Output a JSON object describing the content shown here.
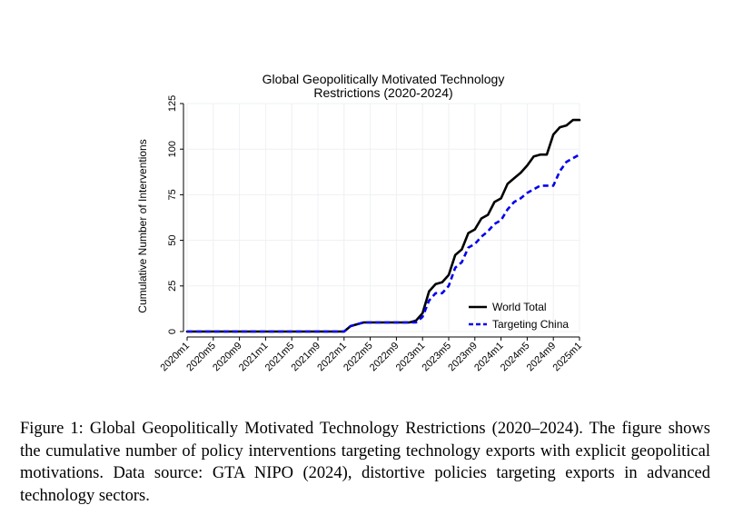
{
  "chart_data": {
    "type": "line",
    "title_lines": [
      "Global Geopolitically Motivated Technology",
      "Restrictions (2020-2024)"
    ],
    "xlabel": "",
    "ylabel": "Cumulative Number of Interventions",
    "ylim": [
      0,
      125
    ],
    "yticks": [
      0,
      25,
      50,
      75,
      100,
      125
    ],
    "xlim": [
      0,
      60
    ],
    "xticks": [
      0,
      4,
      8,
      12,
      16,
      20,
      24,
      28,
      32,
      36,
      40,
      44,
      48,
      52,
      56,
      60
    ],
    "xtick_labels": [
      "2020m1",
      "2020m5",
      "2020m9",
      "2021m1",
      "2021m5",
      "2021m9",
      "2022m1",
      "2022m5",
      "2022m9",
      "2023m1",
      "2023m5",
      "2023m9",
      "2024m1",
      "2024m5",
      "2024m9",
      "2025m1"
    ],
    "grid": true,
    "legend_position": "bottom-right",
    "series": [
      {
        "name": "World Total",
        "color": "#000000",
        "style": "solid",
        "x": [
          0,
          1,
          2,
          3,
          4,
          5,
          6,
          7,
          8,
          9,
          10,
          11,
          12,
          13,
          14,
          15,
          16,
          17,
          18,
          19,
          20,
          21,
          22,
          23,
          24,
          25,
          26,
          27,
          28,
          29,
          30,
          31,
          32,
          33,
          34,
          35,
          36,
          37,
          38,
          39,
          40,
          41,
          42,
          43,
          44,
          45,
          46,
          47,
          48,
          49,
          50,
          51,
          52,
          53,
          54,
          55,
          56,
          57,
          58,
          59,
          60
        ],
        "values": [
          0,
          0,
          0,
          0,
          0,
          0,
          0,
          0,
          0,
          0,
          0,
          0,
          0,
          0,
          0,
          0,
          0,
          0,
          0,
          0,
          0,
          0,
          0,
          0,
          0,
          3,
          4,
          5,
          5,
          5,
          5,
          5,
          5,
          5,
          5,
          6,
          10,
          22,
          26,
          27,
          31,
          42,
          45,
          54,
          56,
          62,
          64,
          71,
          73,
          81,
          84,
          87,
          91,
          96,
          97,
          97,
          108,
          112,
          113,
          116,
          116
        ]
      },
      {
        "name": "Targeting China",
        "color": "#0000ee",
        "style": "dashed",
        "x": [
          0,
          1,
          2,
          3,
          4,
          5,
          6,
          7,
          8,
          9,
          10,
          11,
          12,
          13,
          14,
          15,
          16,
          17,
          18,
          19,
          20,
          21,
          22,
          23,
          24,
          25,
          26,
          27,
          28,
          29,
          30,
          31,
          32,
          33,
          34,
          35,
          36,
          37,
          38,
          39,
          40,
          41,
          42,
          43,
          44,
          45,
          46,
          47,
          48,
          49,
          50,
          51,
          52,
          53,
          54,
          55,
          56,
          57,
          58,
          59,
          60
        ],
        "values": [
          0,
          0,
          0,
          0,
          0,
          0,
          0,
          0,
          0,
          0,
          0,
          0,
          0,
          0,
          0,
          0,
          0,
          0,
          0,
          0,
          0,
          0,
          0,
          0,
          0,
          3,
          4,
          5,
          5,
          5,
          5,
          5,
          5,
          5,
          5,
          5,
          8,
          17,
          21,
          21,
          25,
          35,
          38,
          46,
          48,
          52,
          55,
          59,
          61,
          67,
          71,
          73,
          76,
          78,
          80,
          80,
          80,
          88,
          93,
          95,
          97
        ]
      }
    ]
  },
  "caption": "Figure 1: Global Geopolitically Motivated Technology Restrictions (2020–2024). The figure shows the cumulative number of policy interventions targeting technology exports with explicit geopolitical motivations. Data source: GTA NIPO (2024), distortive policies targeting exports in advanced technology sectors."
}
